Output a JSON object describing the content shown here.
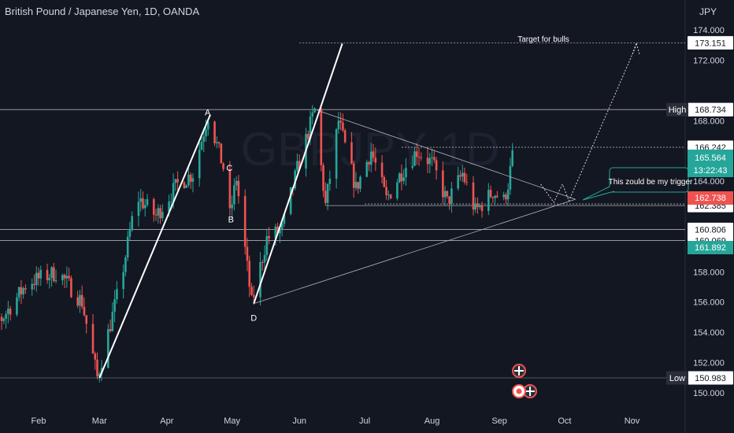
{
  "title": "British Pound / Japanese Yen, 1D, OANDA",
  "currency": "JPY",
  "colors": {
    "background": "#131722",
    "bull": "#26a69a",
    "bear": "#ef5350",
    "text": "#d1d4dc",
    "grid_line": "#c8c8c8"
  },
  "annotations": {
    "target": "Target for bulls",
    "trigger": "This zould be my trigger",
    "A": "A",
    "B": "B",
    "C": "C",
    "D": "D"
  },
  "badges": {
    "high_label": "High",
    "high_value": "168.734",
    "low_label": "Low",
    "low_value": "150.983",
    "current_price": "165.564",
    "countdown": "13:22:43",
    "red_price": "162.738",
    "green_price": "161.892"
  },
  "price_tags": [
    "173.151",
    "168.734",
    "166.242",
    "162.492",
    "162.385",
    "160.806",
    "160.069"
  ],
  "chart_data": {
    "type": "candlestick",
    "title": "British Pound / Japanese Yen, 1D, OANDA",
    "ylabel": "JPY",
    "ylim": [
      149.6,
      174.2
    ],
    "y_ticks": [
      "174.000",
      "172.000",
      "168.000",
      "164.000",
      "158.000",
      "156.000",
      "154.000",
      "152.000",
      "150.000"
    ],
    "x_ticks": [
      "Feb",
      "Mar",
      "Apr",
      "May",
      "Jun",
      "Jul",
      "Aug",
      "Sep",
      "Oct",
      "Nov"
    ],
    "horizontal_levels": [
      173.151,
      168.734,
      166.242,
      162.492,
      162.385,
      160.806,
      160.069,
      150.983
    ],
    "key_points": {
      "low": {
        "date": "Mar 1",
        "value": 150.98
      },
      "A": {
        "date": "Apr 21",
        "value": 168.4
      },
      "B": {
        "date": "May 1",
        "value": 161.7
      },
      "C": {
        "date": "Apr 28",
        "value": 164.9
      },
      "D": {
        "date": "May 11",
        "value": 155.9
      },
      "high": {
        "date": "Jun 9",
        "value": 168.73
      },
      "last": {
        "date": "Sep 8",
        "value": 165.56
      }
    },
    "anchors": [
      {
        "date": "Jan 1",
        "value": 157.5
      },
      {
        "date": "Jan 10",
        "value": 156.2
      },
      {
        "date": "Jan 14",
        "value": 154.5
      },
      {
        "date": "Jan 28",
        "value": 157.3
      },
      {
        "date": "Feb 11",
        "value": 158.0
      },
      {
        "date": "Feb 22",
        "value": 156.0
      },
      {
        "date": "Mar 1",
        "value": 151.0
      },
      {
        "date": "Mar 12",
        "value": 157.5
      },
      {
        "date": "Mar 19",
        "value": 163.0
      },
      {
        "date": "Mar 28",
        "value": 161.7
      },
      {
        "date": "Apr 7",
        "value": 163.8
      },
      {
        "date": "Apr 14",
        "value": 164.5
      },
      {
        "date": "Apr 21",
        "value": 168.4
      },
      {
        "date": "Apr 28",
        "value": 164.9
      },
      {
        "date": "May 1",
        "value": 161.7
      },
      {
        "date": "May 4",
        "value": 164.2
      },
      {
        "date": "May 11",
        "value": 155.9
      },
      {
        "date": "May 18",
        "value": 160.2
      },
      {
        "date": "May 25",
        "value": 160.8
      },
      {
        "date": "Jun 1",
        "value": 164.8
      },
      {
        "date": "Jun 9",
        "value": 168.7
      },
      {
        "date": "Jun 14",
        "value": 162.4
      },
      {
        "date": "Jun 20",
        "value": 168.0
      },
      {
        "date": "Jun 28",
        "value": 163.5
      },
      {
        "date": "Jul 5",
        "value": 166.0
      },
      {
        "date": "Jul 12",
        "value": 162.8
      },
      {
        "date": "Jul 19",
        "value": 164.6
      },
      {
        "date": "Jul 26",
        "value": 166.0
      },
      {
        "date": "Aug 2",
        "value": 165.2
      },
      {
        "date": "Aug 9",
        "value": 162.6
      },
      {
        "date": "Aug 16",
        "value": 164.5
      },
      {
        "date": "Aug 22",
        "value": 162.0
      },
      {
        "date": "Aug 30",
        "value": 163.3
      },
      {
        "date": "Sep 4",
        "value": 162.7
      },
      {
        "date": "Sep 6",
        "value": 163.8
      },
      {
        "date": "Sep 8",
        "value": 165.6
      }
    ]
  }
}
